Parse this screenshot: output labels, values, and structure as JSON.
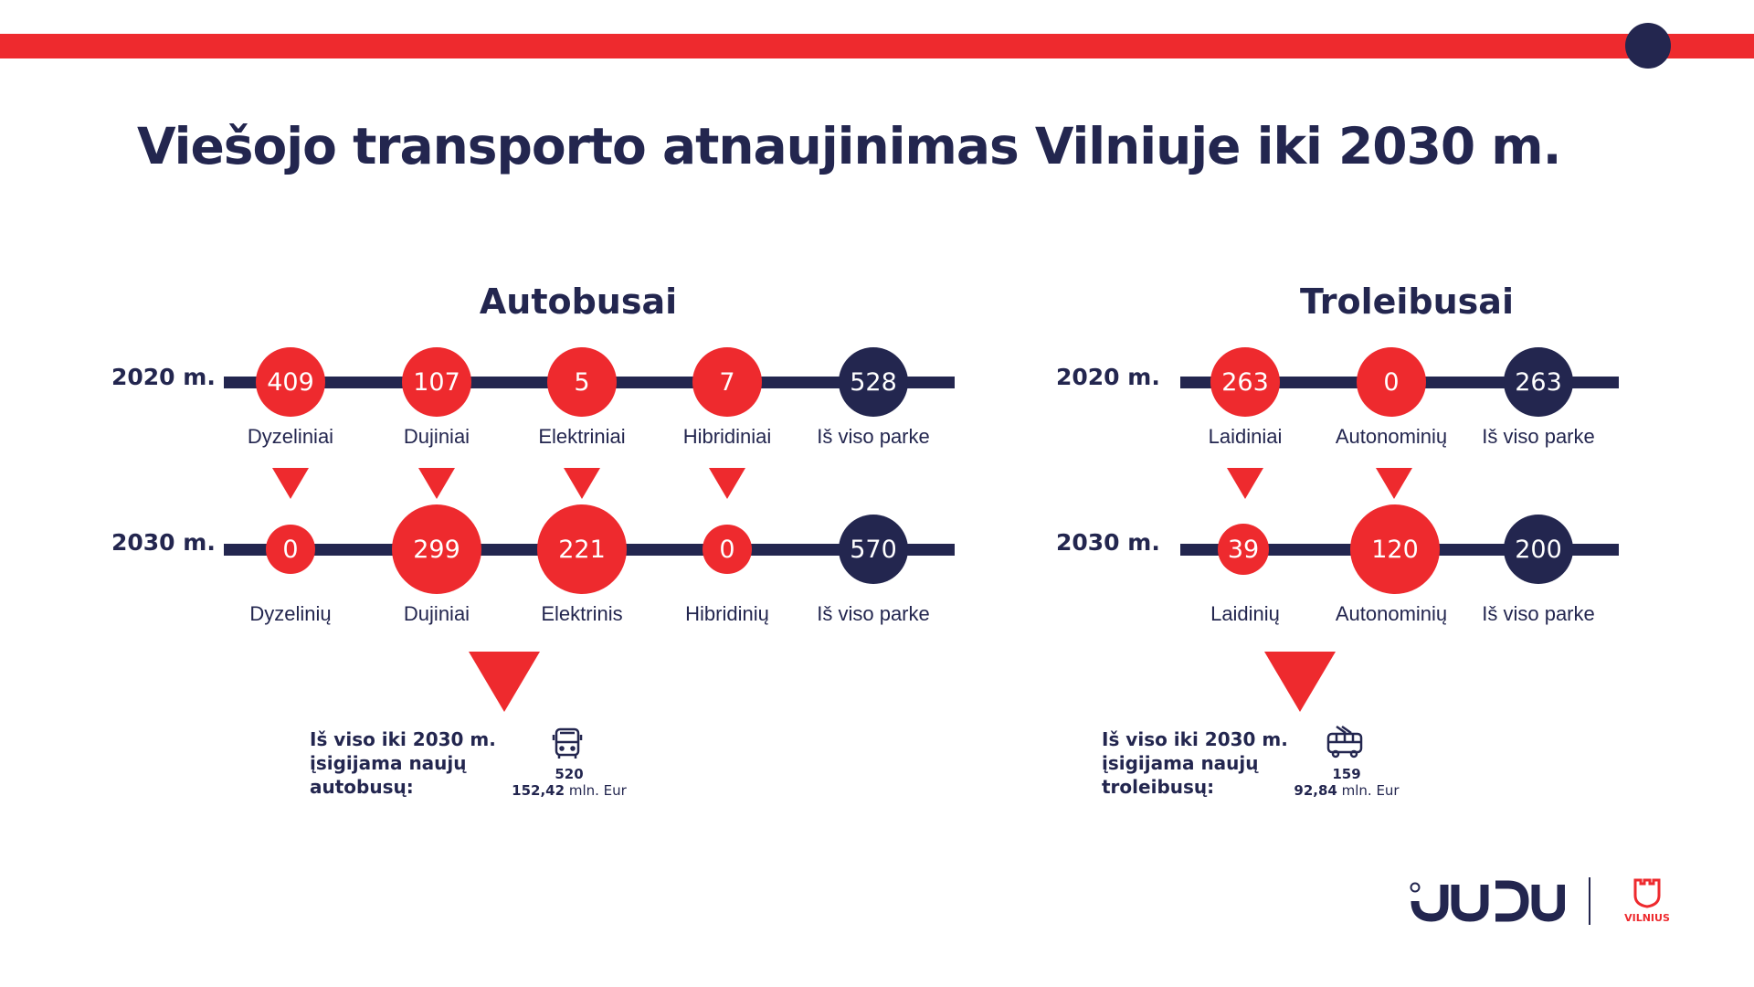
{
  "colors": {
    "red": "#ee2a2e",
    "navy": "#23264f"
  },
  "title": "Viešojo transporto atnaujinimas Vilniuje iki 2030 m.",
  "sections": [
    {
      "name": "Autobusai",
      "rows": [
        {
          "year": "2020 m.",
          "items": [
            {
              "value": "409",
              "label": "Dyzeliniai",
              "color": "red"
            },
            {
              "value": "107",
              "label": "Dujiniai",
              "color": "red"
            },
            {
              "value": "5",
              "label": "Elektriniai",
              "color": "red"
            },
            {
              "value": "7",
              "label": "Hibridiniai",
              "color": "red"
            },
            {
              "value": "528",
              "label": "Iš viso parke",
              "color": "navy"
            }
          ]
        },
        {
          "year": "2030 m.",
          "items": [
            {
              "value": "0",
              "label": "Dyzelinių",
              "color": "red"
            },
            {
              "value": "299",
              "label": "Dujiniai",
              "color": "red"
            },
            {
              "value": "221",
              "label": "Elektrinis",
              "color": "red"
            },
            {
              "value": "0",
              "label": "Hibridinių",
              "color": "red"
            },
            {
              "value": "570",
              "label": "Iš viso parke",
              "color": "navy"
            }
          ]
        }
      ],
      "summary": {
        "line1": "Iš viso iki 2030 m.",
        "line2": "įsigijama naujų",
        "line3": "autobusų:",
        "icon": "bus-icon",
        "count": "520",
        "amount": "152,42",
        "unit": "mln. Eur"
      }
    },
    {
      "name": "Troleibusai",
      "rows": [
        {
          "year": "2020 m.",
          "items": [
            {
              "value": "263",
              "label": "Laidiniai",
              "color": "red"
            },
            {
              "value": "0",
              "label": "Autonominių",
              "color": "red"
            },
            {
              "value": "263",
              "label": "Iš viso parke",
              "color": "navy"
            }
          ]
        },
        {
          "year": "2030 m.",
          "items": [
            {
              "value": "39",
              "label": "Laidinių",
              "color": "red"
            },
            {
              "value": "120",
              "label": "Autonominių",
              "color": "red"
            },
            {
              "value": "200",
              "label": "Iš viso parke",
              "color": "navy"
            }
          ]
        }
      ],
      "summary": {
        "line1": "Iš viso iki 2030 m.",
        "line2": "įsigijama naujų",
        "line3": "troleibusų:",
        "icon": "trolleybus-icon",
        "count": "159",
        "amount": "92,84",
        "unit": "mln. Eur"
      }
    }
  ],
  "logos": {
    "judu": "JUDU",
    "vilnius": "VILNIUS"
  }
}
